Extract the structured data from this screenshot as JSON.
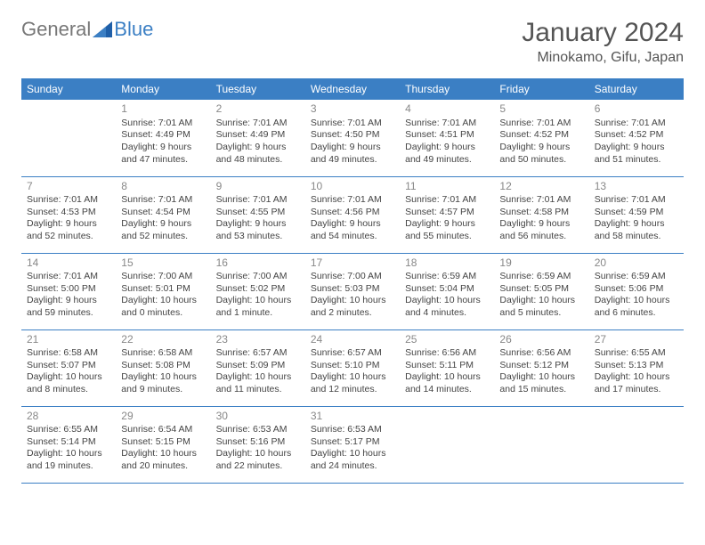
{
  "logo": {
    "text1": "General",
    "text2": "Blue"
  },
  "title": "January 2024",
  "location": "Minokamo, Gifu, Japan",
  "colors": {
    "header_bg": "#3b7fc4",
    "header_fg": "#ffffff",
    "border": "#3b7fc4",
    "daynum": "#888888",
    "text": "#444444",
    "title": "#555555"
  },
  "weekdays": [
    "Sunday",
    "Monday",
    "Tuesday",
    "Wednesday",
    "Thursday",
    "Friday",
    "Saturday"
  ],
  "weeks": [
    [
      null,
      {
        "n": "1",
        "sr": "Sunrise: 7:01 AM",
        "ss": "Sunset: 4:49 PM",
        "d1": "Daylight: 9 hours",
        "d2": "and 47 minutes."
      },
      {
        "n": "2",
        "sr": "Sunrise: 7:01 AM",
        "ss": "Sunset: 4:49 PM",
        "d1": "Daylight: 9 hours",
        "d2": "and 48 minutes."
      },
      {
        "n": "3",
        "sr": "Sunrise: 7:01 AM",
        "ss": "Sunset: 4:50 PM",
        "d1": "Daylight: 9 hours",
        "d2": "and 49 minutes."
      },
      {
        "n": "4",
        "sr": "Sunrise: 7:01 AM",
        "ss": "Sunset: 4:51 PM",
        "d1": "Daylight: 9 hours",
        "d2": "and 49 minutes."
      },
      {
        "n": "5",
        "sr": "Sunrise: 7:01 AM",
        "ss": "Sunset: 4:52 PM",
        "d1": "Daylight: 9 hours",
        "d2": "and 50 minutes."
      },
      {
        "n": "6",
        "sr": "Sunrise: 7:01 AM",
        "ss": "Sunset: 4:52 PM",
        "d1": "Daylight: 9 hours",
        "d2": "and 51 minutes."
      }
    ],
    [
      {
        "n": "7",
        "sr": "Sunrise: 7:01 AM",
        "ss": "Sunset: 4:53 PM",
        "d1": "Daylight: 9 hours",
        "d2": "and 52 minutes."
      },
      {
        "n": "8",
        "sr": "Sunrise: 7:01 AM",
        "ss": "Sunset: 4:54 PM",
        "d1": "Daylight: 9 hours",
        "d2": "and 52 minutes."
      },
      {
        "n": "9",
        "sr": "Sunrise: 7:01 AM",
        "ss": "Sunset: 4:55 PM",
        "d1": "Daylight: 9 hours",
        "d2": "and 53 minutes."
      },
      {
        "n": "10",
        "sr": "Sunrise: 7:01 AM",
        "ss": "Sunset: 4:56 PM",
        "d1": "Daylight: 9 hours",
        "d2": "and 54 minutes."
      },
      {
        "n": "11",
        "sr": "Sunrise: 7:01 AM",
        "ss": "Sunset: 4:57 PM",
        "d1": "Daylight: 9 hours",
        "d2": "and 55 minutes."
      },
      {
        "n": "12",
        "sr": "Sunrise: 7:01 AM",
        "ss": "Sunset: 4:58 PM",
        "d1": "Daylight: 9 hours",
        "d2": "and 56 minutes."
      },
      {
        "n": "13",
        "sr": "Sunrise: 7:01 AM",
        "ss": "Sunset: 4:59 PM",
        "d1": "Daylight: 9 hours",
        "d2": "and 58 minutes."
      }
    ],
    [
      {
        "n": "14",
        "sr": "Sunrise: 7:01 AM",
        "ss": "Sunset: 5:00 PM",
        "d1": "Daylight: 9 hours",
        "d2": "and 59 minutes."
      },
      {
        "n": "15",
        "sr": "Sunrise: 7:00 AM",
        "ss": "Sunset: 5:01 PM",
        "d1": "Daylight: 10 hours",
        "d2": "and 0 minutes."
      },
      {
        "n": "16",
        "sr": "Sunrise: 7:00 AM",
        "ss": "Sunset: 5:02 PM",
        "d1": "Daylight: 10 hours",
        "d2": "and 1 minute."
      },
      {
        "n": "17",
        "sr": "Sunrise: 7:00 AM",
        "ss": "Sunset: 5:03 PM",
        "d1": "Daylight: 10 hours",
        "d2": "and 2 minutes."
      },
      {
        "n": "18",
        "sr": "Sunrise: 6:59 AM",
        "ss": "Sunset: 5:04 PM",
        "d1": "Daylight: 10 hours",
        "d2": "and 4 minutes."
      },
      {
        "n": "19",
        "sr": "Sunrise: 6:59 AM",
        "ss": "Sunset: 5:05 PM",
        "d1": "Daylight: 10 hours",
        "d2": "and 5 minutes."
      },
      {
        "n": "20",
        "sr": "Sunrise: 6:59 AM",
        "ss": "Sunset: 5:06 PM",
        "d1": "Daylight: 10 hours",
        "d2": "and 6 minutes."
      }
    ],
    [
      {
        "n": "21",
        "sr": "Sunrise: 6:58 AM",
        "ss": "Sunset: 5:07 PM",
        "d1": "Daylight: 10 hours",
        "d2": "and 8 minutes."
      },
      {
        "n": "22",
        "sr": "Sunrise: 6:58 AM",
        "ss": "Sunset: 5:08 PM",
        "d1": "Daylight: 10 hours",
        "d2": "and 9 minutes."
      },
      {
        "n": "23",
        "sr": "Sunrise: 6:57 AM",
        "ss": "Sunset: 5:09 PM",
        "d1": "Daylight: 10 hours",
        "d2": "and 11 minutes."
      },
      {
        "n": "24",
        "sr": "Sunrise: 6:57 AM",
        "ss": "Sunset: 5:10 PM",
        "d1": "Daylight: 10 hours",
        "d2": "and 12 minutes."
      },
      {
        "n": "25",
        "sr": "Sunrise: 6:56 AM",
        "ss": "Sunset: 5:11 PM",
        "d1": "Daylight: 10 hours",
        "d2": "and 14 minutes."
      },
      {
        "n": "26",
        "sr": "Sunrise: 6:56 AM",
        "ss": "Sunset: 5:12 PM",
        "d1": "Daylight: 10 hours",
        "d2": "and 15 minutes."
      },
      {
        "n": "27",
        "sr": "Sunrise: 6:55 AM",
        "ss": "Sunset: 5:13 PM",
        "d1": "Daylight: 10 hours",
        "d2": "and 17 minutes."
      }
    ],
    [
      {
        "n": "28",
        "sr": "Sunrise: 6:55 AM",
        "ss": "Sunset: 5:14 PM",
        "d1": "Daylight: 10 hours",
        "d2": "and 19 minutes."
      },
      {
        "n": "29",
        "sr": "Sunrise: 6:54 AM",
        "ss": "Sunset: 5:15 PM",
        "d1": "Daylight: 10 hours",
        "d2": "and 20 minutes."
      },
      {
        "n": "30",
        "sr": "Sunrise: 6:53 AM",
        "ss": "Sunset: 5:16 PM",
        "d1": "Daylight: 10 hours",
        "d2": "and 22 minutes."
      },
      {
        "n": "31",
        "sr": "Sunrise: 6:53 AM",
        "ss": "Sunset: 5:17 PM",
        "d1": "Daylight: 10 hours",
        "d2": "and 24 minutes."
      },
      null,
      null,
      null
    ]
  ]
}
